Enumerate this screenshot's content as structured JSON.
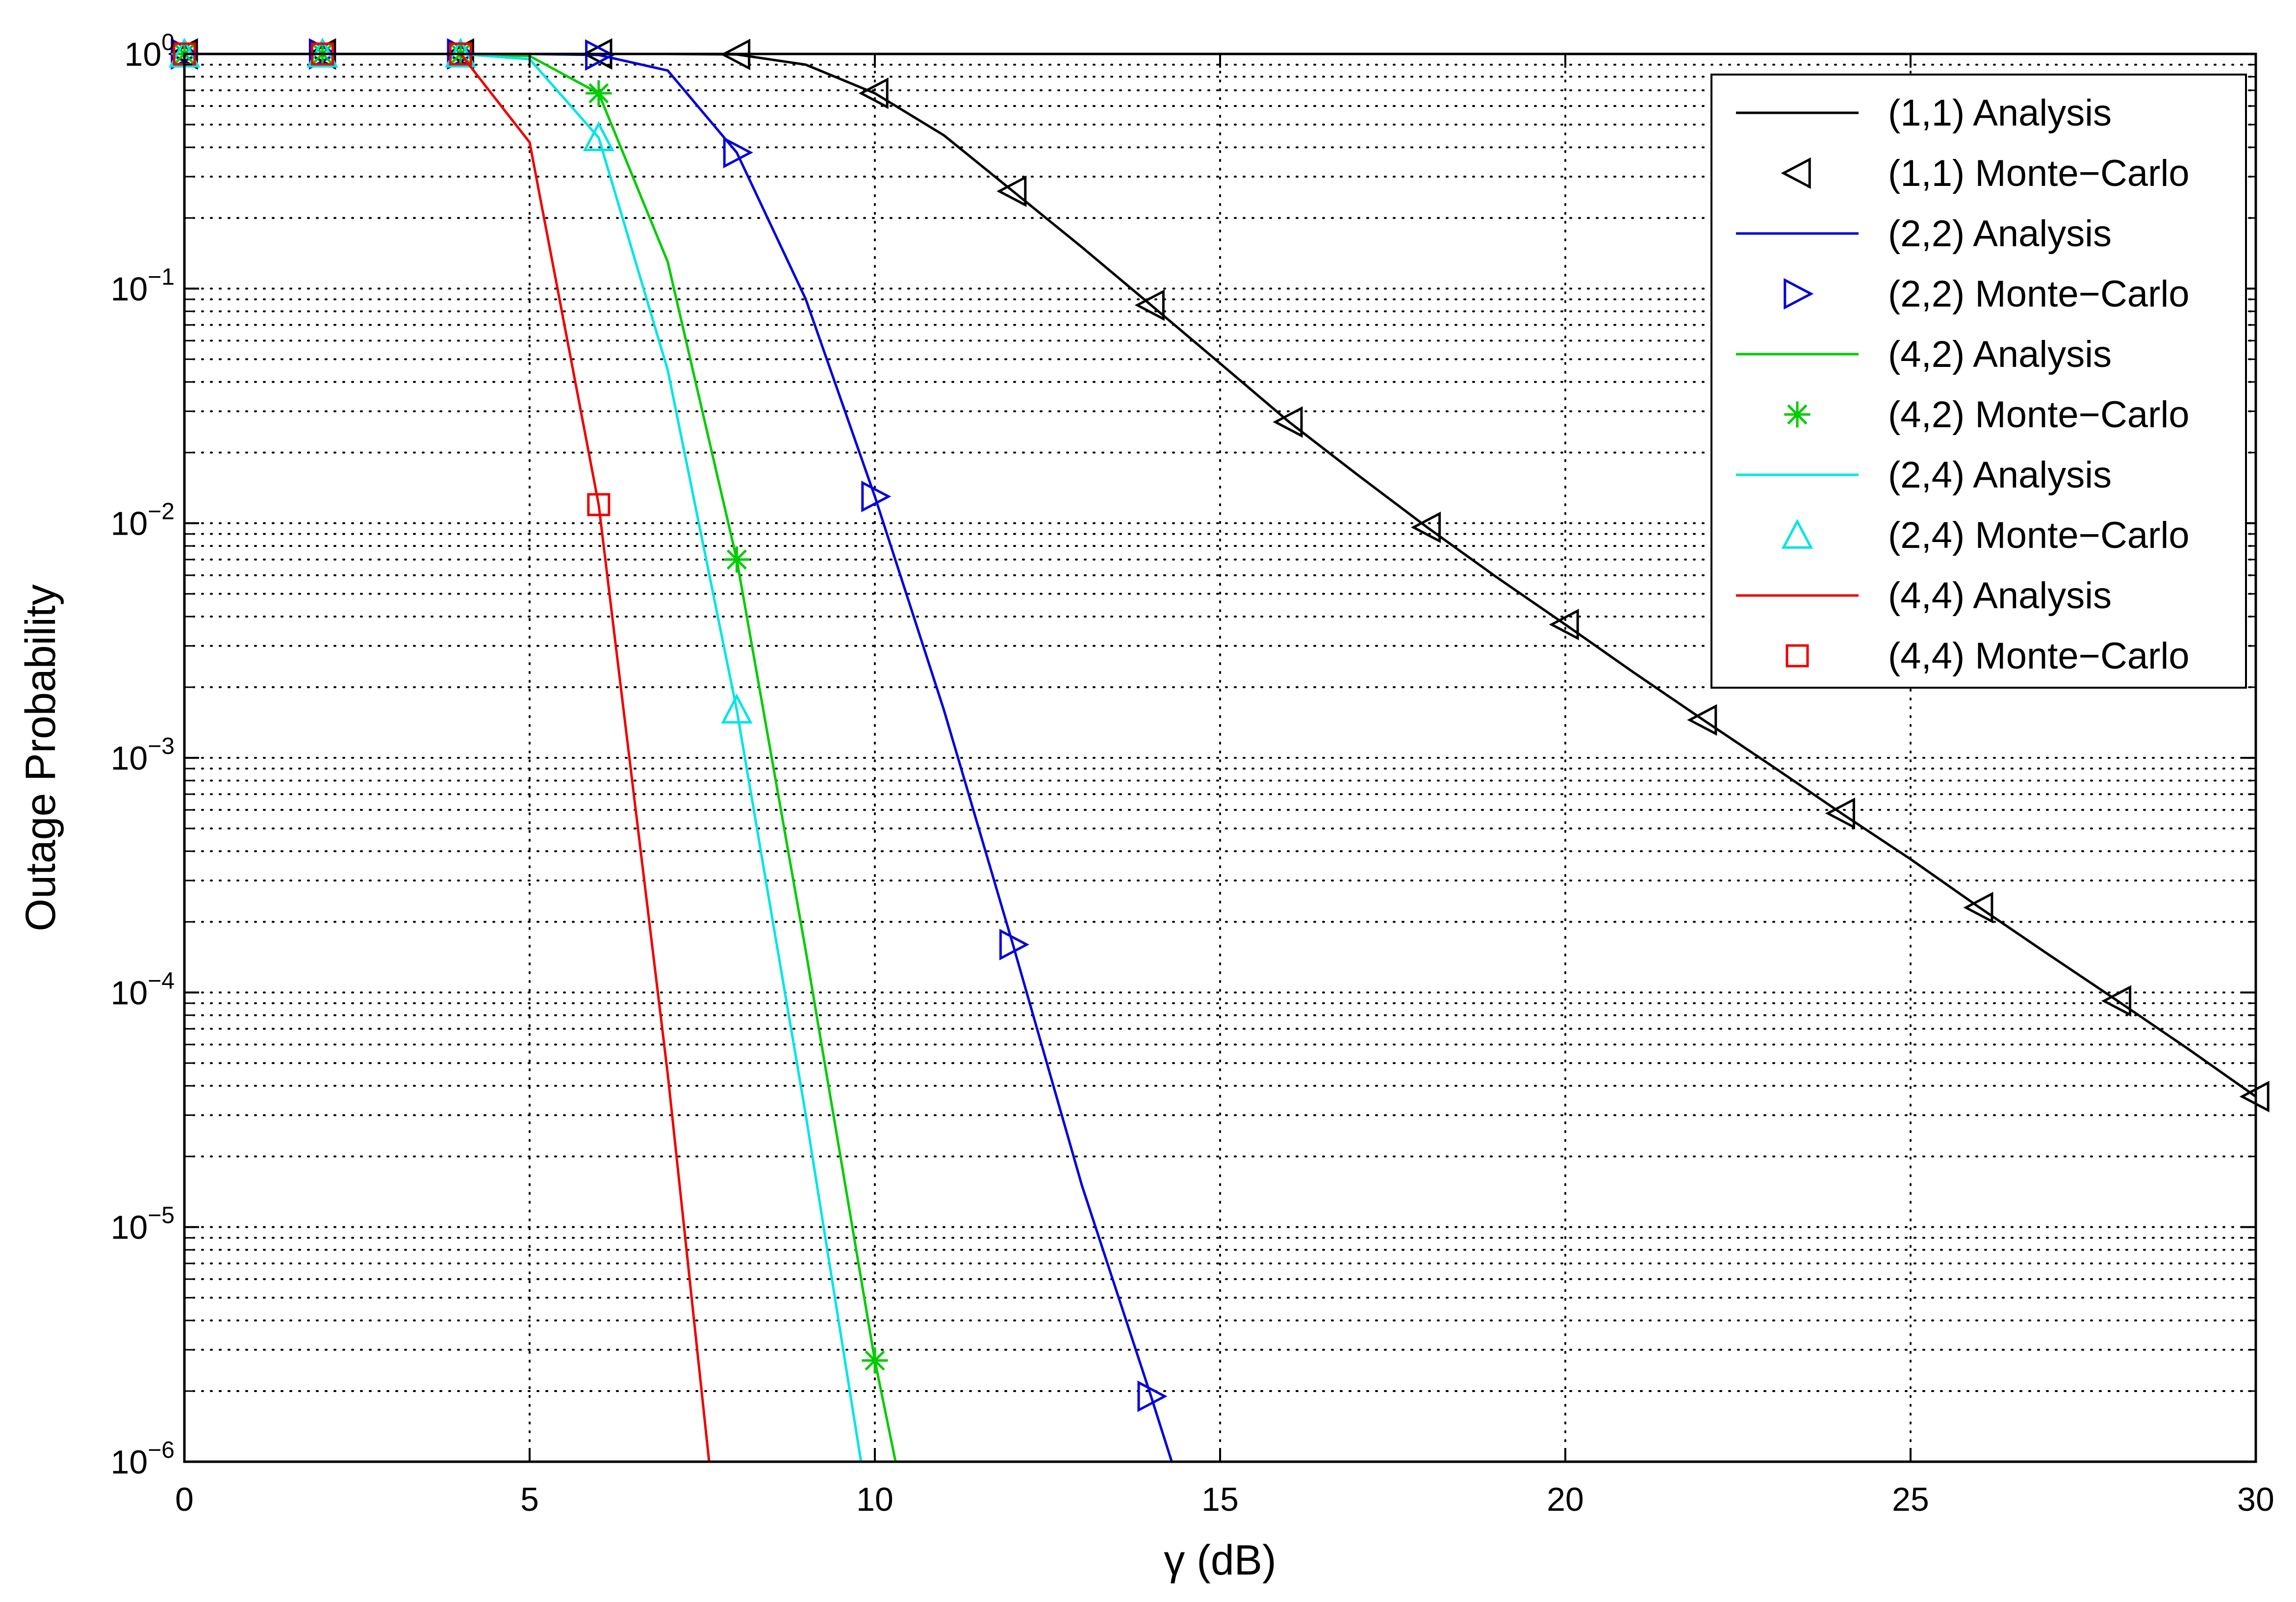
{
  "chart_data": {
    "type": "line",
    "title": "",
    "xlabel": "γ  (dB)",
    "ylabel": "Outage Probability",
    "xlim": [
      0,
      30
    ],
    "ylim": [
      1e-06,
      1
    ],
    "yscale": "log",
    "grid": true,
    "grid_style": "dotted",
    "legend_position": "top-right",
    "x_ticks": [
      "0",
      "5",
      "10",
      "15",
      "20",
      "25",
      "30"
    ],
    "y_ticks": [
      {
        "base": "10",
        "exp": "0"
      },
      {
        "base": "10",
        "exp": "−1"
      },
      {
        "base": "10",
        "exp": "−2"
      },
      {
        "base": "10",
        "exp": "−3"
      },
      {
        "base": "10",
        "exp": "−4"
      },
      {
        "base": "10",
        "exp": "−5"
      },
      {
        "base": "10",
        "exp": "−6"
      }
    ],
    "series": [
      {
        "name": "(1,1) Analysis",
        "kind": "line",
        "color": "#000000",
        "x": [
          0,
          1,
          2,
          3,
          4,
          5,
          6,
          7,
          8,
          9,
          10,
          11,
          12,
          13,
          14,
          15,
          16,
          17,
          18,
          19,
          20,
          21,
          22,
          23,
          24,
          25,
          26,
          27,
          28,
          29,
          30
        ],
        "y": [
          1,
          1,
          1,
          1,
          1,
          1,
          1,
          1,
          0.995,
          0.9,
          0.68,
          0.45,
          0.26,
          0.15,
          0.085,
          0.048,
          0.027,
          0.016,
          0.0096,
          0.0059,
          0.0037,
          0.0023,
          0.00145,
          0.00092,
          0.00058,
          0.00037,
          0.00023,
          0.000145,
          9.2e-05,
          5.8e-05,
          3.6e-05
        ]
      },
      {
        "name": "(1,1) Monte−Carlo",
        "kind": "marker",
        "marker": "triangle-left",
        "color": "#000000",
        "x": [
          0,
          2,
          4,
          6,
          8,
          10,
          12,
          14,
          16,
          18,
          20,
          22,
          24,
          26,
          28,
          30
        ],
        "y": [
          1,
          1,
          1,
          1,
          0.995,
          0.68,
          0.26,
          0.085,
          0.027,
          0.0096,
          0.0037,
          0.00145,
          0.00058,
          0.00023,
          9.2e-05,
          3.6e-05
        ]
      },
      {
        "name": "(2,2) Analysis",
        "kind": "line",
        "color": "#0000dd",
        "x": [
          0,
          1,
          2,
          3,
          4,
          5,
          6,
          7,
          8,
          9,
          10,
          11,
          12,
          13,
          14,
          14.3
        ],
        "y": [
          1,
          1,
          1,
          1,
          1,
          1,
          0.99,
          0.85,
          0.38,
          0.09,
          0.013,
          0.0016,
          0.00016,
          1.5e-05,
          1.9e-06,
          1e-06
        ]
      },
      {
        "name": "(2,2) Monte−Carlo",
        "kind": "marker",
        "marker": "triangle-right",
        "color": "#0000dd",
        "x": [
          0,
          2,
          4,
          6,
          8,
          10,
          12,
          14
        ],
        "y": [
          1,
          1,
          1,
          0.99,
          0.38,
          0.013,
          0.00016,
          1.9e-06
        ]
      },
      {
        "name": "(4,2) Analysis",
        "kind": "line",
        "color": "#00cc00",
        "x": [
          0,
          1,
          2,
          3,
          4,
          5,
          6,
          7,
          8,
          9,
          10,
          10.3
        ],
        "y": [
          1,
          1,
          1,
          1,
          1,
          0.98,
          0.68,
          0.13,
          0.007,
          0.00015,
          2.7e-06,
          1e-06
        ]
      },
      {
        "name": "(4,2) Monte−Carlo",
        "kind": "marker",
        "marker": "asterisk",
        "color": "#00cc00",
        "x": [
          0,
          2,
          4,
          6,
          8,
          10
        ],
        "y": [
          1,
          1,
          1,
          0.68,
          0.007,
          2.7e-06
        ]
      },
      {
        "name": "(2,4) Analysis",
        "kind": "line",
        "color": "#00e5e5",
        "x": [
          0,
          1,
          2,
          3,
          4,
          5,
          6,
          7,
          8,
          9,
          9.8
        ],
        "y": [
          1,
          1,
          1,
          1,
          1,
          0.95,
          0.44,
          0.045,
          0.0016,
          3e-05,
          1e-06
        ]
      },
      {
        "name": "(2,4) Monte−Carlo",
        "kind": "marker",
        "marker": "triangle-up",
        "color": "#00e5e5",
        "x": [
          0,
          2,
          4,
          6,
          8
        ],
        "y": [
          1,
          1,
          1,
          0.44,
          0.0016
        ]
      },
      {
        "name": "(4,4) Analysis",
        "kind": "line",
        "color": "#ee0000",
        "x": [
          0,
          1,
          2,
          3,
          4,
          5,
          6,
          7,
          7.6
        ],
        "y": [
          1,
          1,
          1,
          1,
          1,
          0.42,
          0.012,
          4.5e-05,
          1e-06
        ]
      },
      {
        "name": "(4,4) Monte−Carlo",
        "kind": "marker",
        "marker": "square",
        "color": "#ee0000",
        "x": [
          0,
          2,
          4,
          6
        ],
        "y": [
          1,
          1,
          1,
          0.012
        ]
      }
    ]
  }
}
